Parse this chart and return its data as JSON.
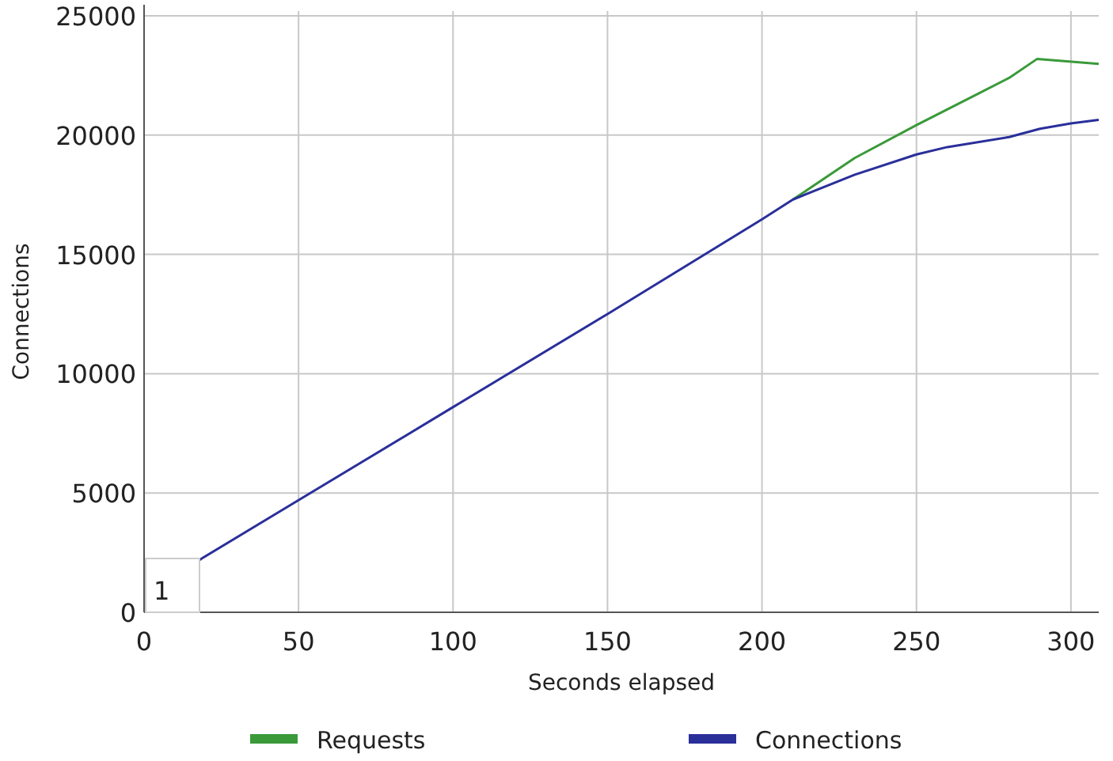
{
  "chart_data": {
    "type": "line",
    "xlabel": "Seconds elapsed",
    "ylabel": "Connections",
    "xlim": [
      0,
      309
    ],
    "xticks": [
      0,
      50,
      100,
      150,
      200,
      250,
      300
    ],
    "ylim": [
      0,
      25200
    ],
    "yticks": [
      0,
      5000,
      10000,
      15000,
      20000,
      25000
    ],
    "grid": true,
    "legend": "bottom",
    "marker": "none",
    "line_style": "solid",
    "annotations": [
      "1"
    ],
    "series": [
      {
        "name": "Requests",
        "color": "#3a9a3a",
        "x": [
          210,
          230,
          250,
          270,
          280,
          289,
          309
        ],
        "values": [
          17300,
          19040,
          20420,
          21740,
          22400,
          23190,
          22990
        ]
      },
      {
        "name": "Connections",
        "color": "#2a2f9a",
        "x": [
          18,
          50,
          100,
          150,
          200,
          210,
          230,
          250,
          260,
          280,
          290,
          300,
          309
        ],
        "values": [
          2200,
          4700,
          8600,
          12500,
          16470,
          17300,
          18340,
          19190,
          19500,
          19920,
          20270,
          20490,
          20640
        ]
      }
    ]
  }
}
